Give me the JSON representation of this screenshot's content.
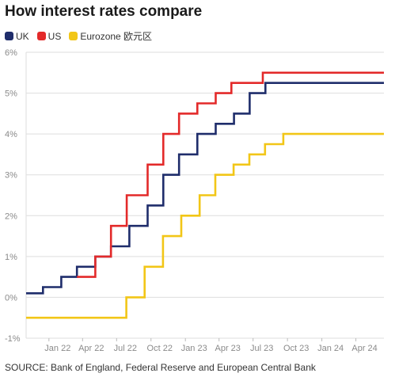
{
  "chart_data": {
    "type": "line",
    "step": true,
    "title": "How interest rates compare",
    "source": "SOURCE: Bank of England, Federal Reserve and European Central Bank",
    "y_ticks": [
      "6%",
      "5%",
      "4%",
      "3%",
      "2%",
      "1%",
      "0%",
      "-1%"
    ],
    "ylim": [
      -1,
      6
    ],
    "x_ticks": [
      "Jan 22",
      "Apr 22",
      "Jul 22",
      "Oct 22",
      "Jan 23",
      "Apr 23",
      "Jul 23",
      "Oct 23",
      "Jan 24",
      "Apr 24"
    ],
    "x_tick_dates": [
      "2022-01",
      "2022-04",
      "2022-07",
      "2022-10",
      "2023-01",
      "2023-04",
      "2023-07",
      "2023-10",
      "2024-01",
      "2024-04"
    ],
    "xlim": [
      "2021-11-01",
      "2024-06-15"
    ],
    "grid": true,
    "legend_position": "top-left",
    "series": [
      {
        "name": "UK",
        "color": "#1f2d6b",
        "x": [
          "2021-11-01",
          "2021-12-16",
          "2022-02-03",
          "2022-03-17",
          "2022-05-05",
          "2022-06-16",
          "2022-08-04",
          "2022-09-22",
          "2022-11-03",
          "2022-12-15",
          "2023-02-02",
          "2023-03-23",
          "2023-05-11",
          "2023-06-22",
          "2023-08-03",
          "2024-06-15"
        ],
        "values": [
          0.1,
          0.25,
          0.5,
          0.75,
          1.0,
          1.25,
          1.75,
          2.25,
          3.0,
          3.5,
          4.0,
          4.25,
          4.5,
          5.0,
          5.25,
          5.25
        ]
      },
      {
        "name": "US",
        "color": "#e32a2a",
        "x": [
          "2022-03-17",
          "2022-05-05",
          "2022-06-16",
          "2022-07-28",
          "2022-09-22",
          "2022-11-03",
          "2022-12-15",
          "2023-02-02",
          "2023-03-23",
          "2023-05-04",
          "2023-07-27",
          "2024-06-15"
        ],
        "values": [
          0.5,
          1.0,
          1.75,
          2.5,
          3.25,
          4.0,
          4.5,
          4.75,
          5.0,
          5.25,
          5.5,
          5.5
        ]
      },
      {
        "name": "Eurozone 欧元区",
        "color": "#f2c617",
        "x": [
          "2021-11-01",
          "2022-07-27",
          "2022-09-14",
          "2022-11-02",
          "2022-12-21",
          "2023-02-08",
          "2023-03-22",
          "2023-05-10",
          "2023-06-21",
          "2023-08-02",
          "2023-09-20",
          "2024-06-15"
        ],
        "values": [
          -0.5,
          0.0,
          0.75,
          1.5,
          2.0,
          2.5,
          3.0,
          3.25,
          3.5,
          3.75,
          4.0,
          4.0
        ]
      }
    ]
  }
}
